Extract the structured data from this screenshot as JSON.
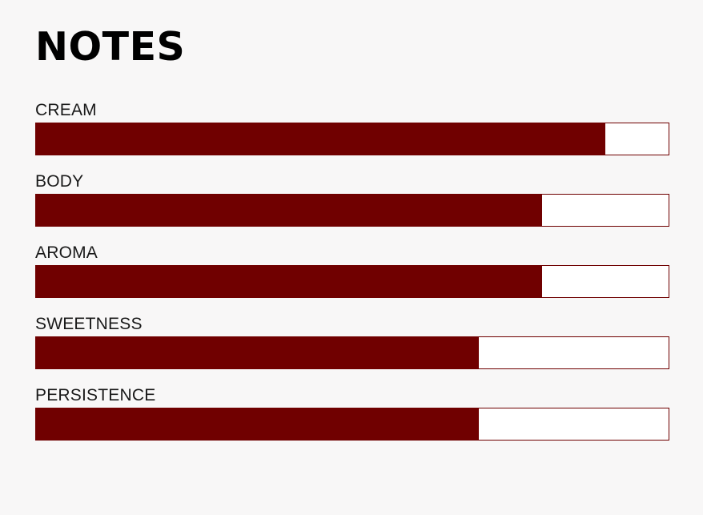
{
  "header": {
    "title": "NOTES"
  },
  "colors": {
    "fill": "#700000",
    "track": "#ffffff",
    "border": "#6f0000",
    "background": "#f8f7f7"
  },
  "notes": [
    {
      "label": "CREAM",
      "level": 0.9
    },
    {
      "label": "BODY",
      "level": 0.8
    },
    {
      "label": "AROMA",
      "level": 0.8
    },
    {
      "label": "SWEETNESS",
      "level": 0.7
    },
    {
      "label": "PERSISTENCE",
      "level": 0.7
    }
  ]
}
